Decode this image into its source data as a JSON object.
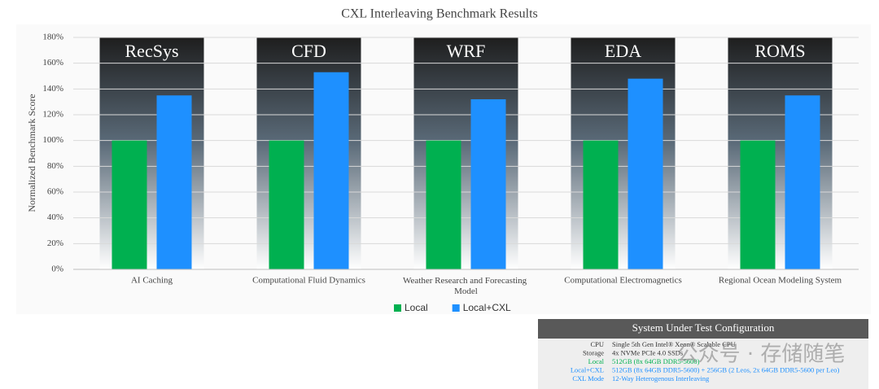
{
  "chart_data": {
    "type": "bar",
    "title": "CXL Interleaving Benchmark Results",
    "y_label": "Normalized Benchmark Score",
    "categories": [
      "AI Caching",
      "Computational Fluid Dynamics",
      "Weather Research and Forecasting Model",
      "Computational Electromagnetics",
      "Regional Ocean Modeling System"
    ],
    "panel_labels": [
      "RecSys",
      "CFD",
      "WRF",
      "EDA",
      "ROMS"
    ],
    "series": [
      {
        "name": "Local",
        "color": "#00b050",
        "values": [
          100,
          100,
          100,
          100,
          100
        ]
      },
      {
        "name": "Local+CXL",
        "color": "#1e90ff",
        "values": [
          135,
          153,
          132,
          148,
          135
        ]
      }
    ],
    "ylim": [
      0,
      180
    ],
    "yticks": [
      {
        "value": 0,
        "label": "0%"
      },
      {
        "value": 20,
        "label": "20%"
      },
      {
        "value": 40,
        "label": "40%"
      },
      {
        "value": 60,
        "label": "60%"
      },
      {
        "value": 80,
        "label": "80%"
      },
      {
        "value": 100,
        "label": "100%"
      },
      {
        "value": 120,
        "label": "120%"
      },
      {
        "value": 140,
        "label": "140%"
      },
      {
        "value": 160,
        "label": "160%"
      },
      {
        "value": 180,
        "label": "180%"
      }
    ],
    "grid": true,
    "legend": "bottom"
  },
  "config_table": {
    "title": "System Under Test Configuration",
    "rows": [
      {
        "label": "CPU",
        "value": "Single 5th Gen Intel® Xeon® Scalable CPU"
      },
      {
        "label": "Storage",
        "value": "4x NVMe PCIe 4.0 SSDs"
      },
      {
        "label": "Local",
        "value": "512GB (8x 64GB DDR5-5600)"
      },
      {
        "label": "Local+CXL",
        "value": "512GB (8x 64GB DDR5-5600) + 256GB (2 Leos, 2x 64GB DDR5-5600 per Leo)"
      },
      {
        "label": "CXL Mode",
        "value": "12-Way Heterogenous Interleaving"
      }
    ]
  },
  "watermark": "公众号 · 存储随笔"
}
